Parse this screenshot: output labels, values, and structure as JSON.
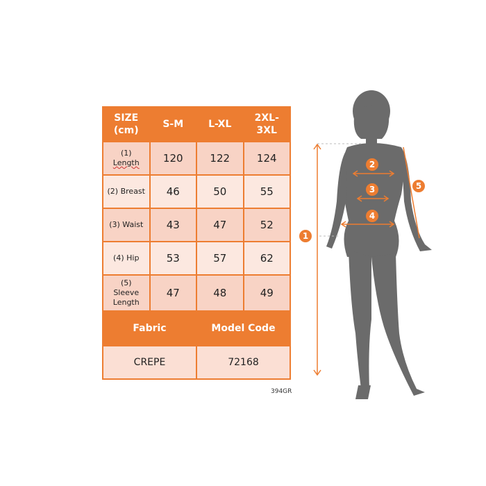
{
  "table": {
    "header": [
      "SIZE (cm)",
      "S-M",
      "L-XL",
      "2XL-3XL"
    ],
    "rows": [
      {
        "label_num": "(1)",
        "label": "Length",
        "values": [
          "120",
          "122",
          "124"
        ]
      },
      {
        "label": "(2) Breast",
        "values": [
          "46",
          "50",
          "55"
        ]
      },
      {
        "label": "(3) Waist",
        "values": [
          "43",
          "47",
          "52"
        ]
      },
      {
        "label": "(4) Hip",
        "values": [
          "53",
          "57",
          "62"
        ]
      },
      {
        "label_num": "(5)",
        "label": "Sleeve Length",
        "values": [
          "47",
          "48",
          "49"
        ]
      }
    ],
    "fabric_label": "Fabric",
    "model_code_label": "Model Code",
    "fabric": "CREPE",
    "model_code": "72168"
  },
  "code": "394GR",
  "markers": [
    "1",
    "2",
    "3",
    "4",
    "5"
  ],
  "colors": {
    "accent": "#ed7d31",
    "silhouette": "#6b6b6b"
  }
}
